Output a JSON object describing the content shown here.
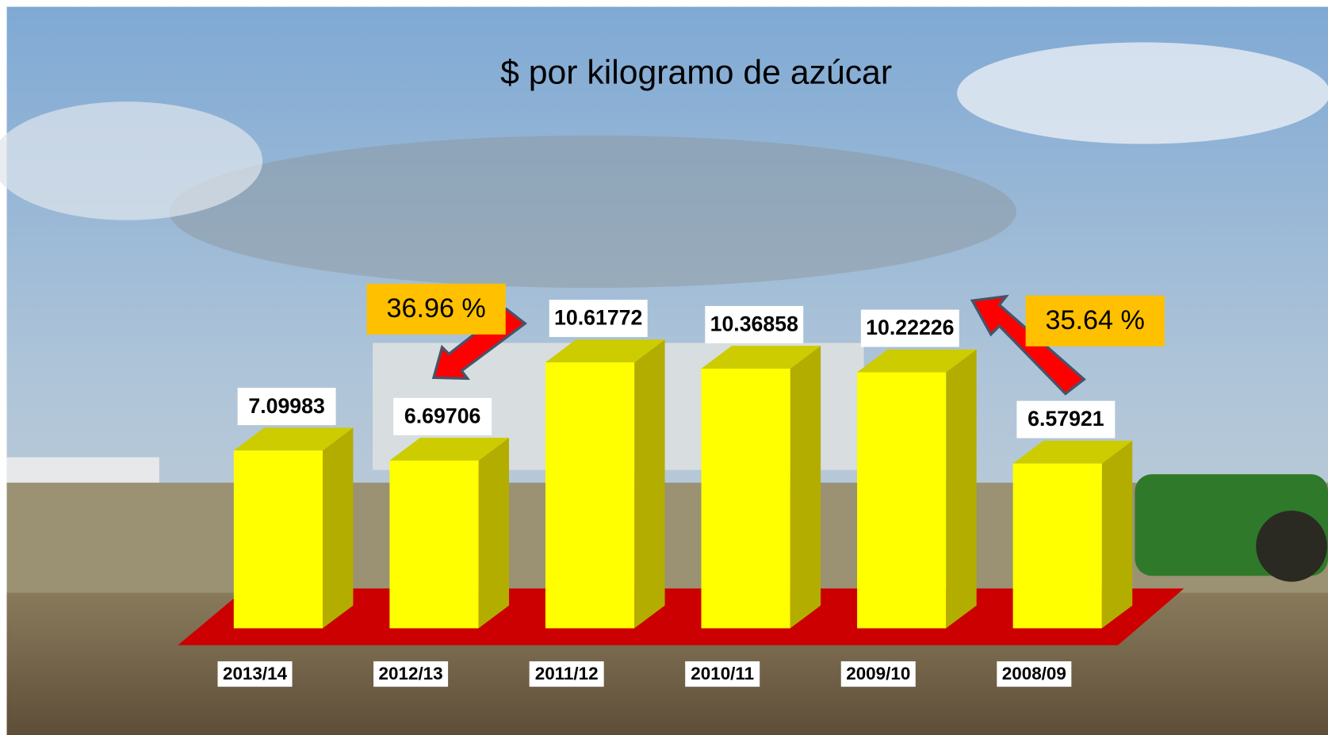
{
  "chart_data": {
    "type": "bar3d",
    "title": "$ por kilogramo de azúcar",
    "categories": [
      "2013/14",
      "2012/13",
      "2011/12",
      "2010/11",
      "2009/10",
      "2008/09"
    ],
    "values": [
      7.09983,
      6.69706,
      10.61772,
      10.36858,
      10.22226,
      6.57921
    ],
    "color": "#ffff00",
    "annotations": [
      "36.96 %",
      "35.64 %"
    ]
  }
}
